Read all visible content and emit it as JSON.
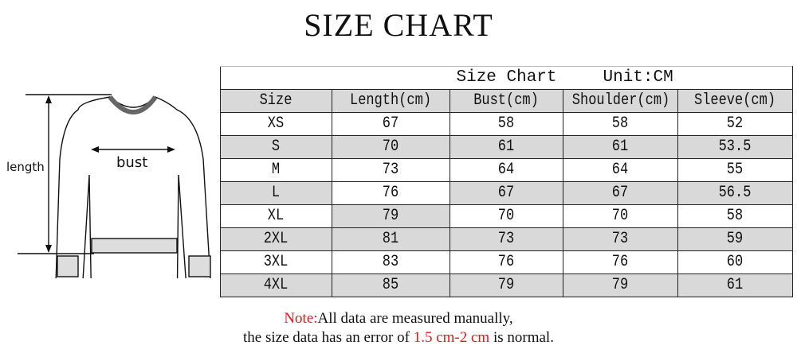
{
  "title": "SIZE CHART",
  "diagram": {
    "length_label": "length",
    "bust_label": "bust"
  },
  "table": {
    "caption": "Size Chart",
    "unit": "Unit:CM",
    "headers": [
      "Size",
      "Length(cm)",
      "Bust(cm)",
      "Shoulder(cm)",
      "Sleeve(cm)"
    ],
    "rows": [
      [
        "XS",
        "67",
        "58",
        "58",
        "52"
      ],
      [
        "S",
        "70",
        "61",
        "61",
        "53.5"
      ],
      [
        "M",
        "73",
        "64",
        "64",
        "55"
      ],
      [
        "L",
        "76",
        "67",
        "67",
        "56.5"
      ],
      [
        "XL",
        "79",
        "70",
        "70",
        "58"
      ],
      [
        "2XL",
        "81",
        "73",
        "73",
        "59"
      ],
      [
        "3XL",
        "83",
        "76",
        "76",
        "60"
      ],
      [
        "4XL",
        "85",
        "79",
        "79",
        "61"
      ]
    ],
    "shade_color": "#d9d9d9"
  },
  "note": {
    "label": "Note:",
    "line1": "All data are measured manually,",
    "line2_pre": "the size data has an error of ",
    "line2_range": "1.5 cm-2 cm",
    "line2_post": " is normal.",
    "accent_color": "#e0191b"
  }
}
